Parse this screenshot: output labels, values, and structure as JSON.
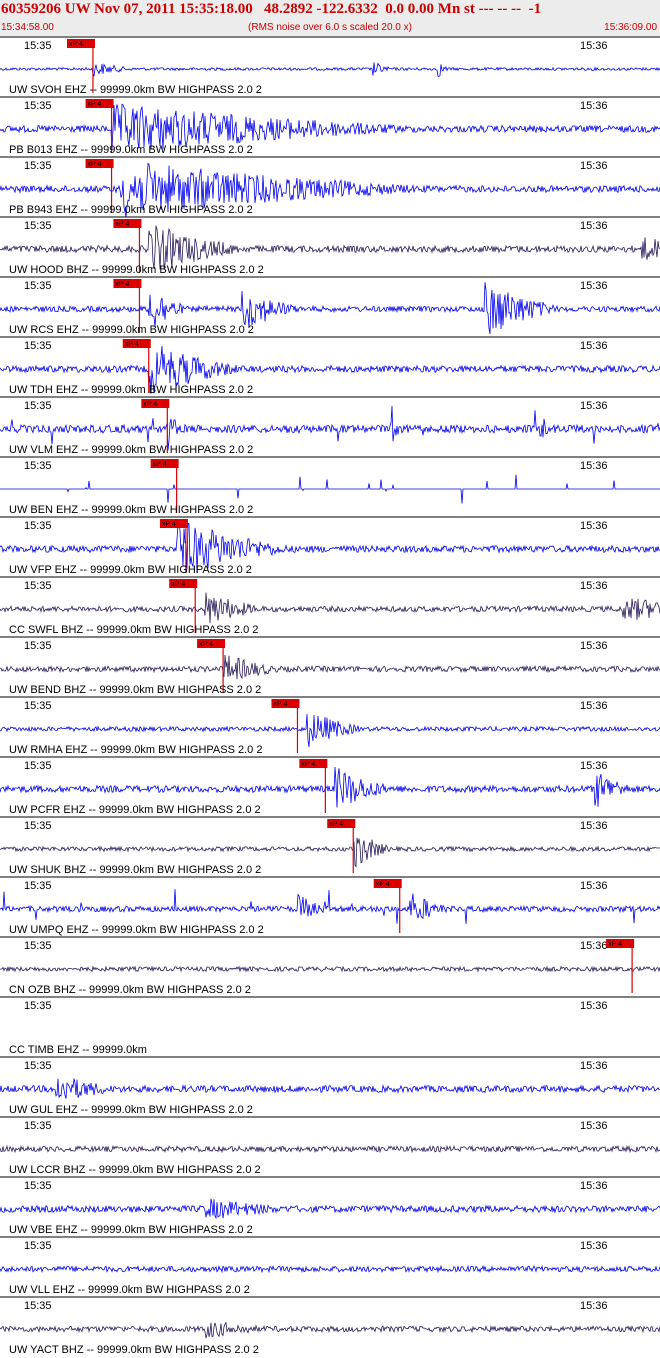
{
  "header": {
    "title": "60359206 UW Nov 07, 2011 15:35:18.00   48.2892 -122.6332  0.0 0.00 Mn st --- -- --  -1",
    "start_time": "15:34:58.00",
    "rms_note": "(RMS noise over 6.0 s scaled 20.0 x)",
    "end_time": "15:36:09.00"
  },
  "colors": {
    "header_text": "#cc0000",
    "header_bg": "#ececec",
    "trace_ehz": "#0000ee",
    "trace_bhz": "#2b1a5c",
    "pick": "#dd0000",
    "separator": "#000000"
  },
  "chart_data": {
    "type": "line",
    "title": "",
    "xlabel": "",
    "ylabel": "",
    "x_ticks": [
      "15:35",
      "15:36"
    ],
    "pick_label": "xP 4",
    "stations": [
      {
        "label": "UW SVOH EHZ -- 99999.0km BW  HIGHPASS  2.0  2",
        "component": "EHZ",
        "pick": "15:35:08",
        "bursts": [
          {
            "t": "15:35:08",
            "amp": 0.22,
            "dur": 2
          },
          {
            "t": "15:35:38",
            "amp": 0.25,
            "dur": 1
          },
          {
            "t": "15:35:45",
            "amp": 0.3,
            "dur": 0.6
          }
        ],
        "noise": 0.05
      },
      {
        "label": "PB B013 EHZ -- 99999.0km BW  HIGHPASS  2.0  2",
        "component": "EHZ",
        "pick": "15:35:10",
        "bursts": [
          {
            "t": "15:35:10",
            "amp": 0.8,
            "dur": 16
          }
        ],
        "noise": 0.12
      },
      {
        "label": "PB B943 EHZ -- 99999.0km BW  HIGHPASS  2.0  2",
        "component": "EHZ",
        "pick": "15:35:10",
        "bursts": [
          {
            "t": "15:35:11",
            "amp": 0.9,
            "dur": 16
          }
        ],
        "noise": 0.12
      },
      {
        "label": "UW HOOD BHZ -- 99999.0km BW  HIGHPASS  2.0  2",
        "component": "BHZ",
        "pick": "15:35:13",
        "bursts": [
          {
            "t": "15:35:14",
            "amp": 0.8,
            "dur": 5
          },
          {
            "t": "15:36:07",
            "amp": 0.35,
            "dur": 3
          }
        ],
        "noise": 0.12
      },
      {
        "label": "UW RCS EHZ -- 99999.0km BW  HIGHPASS  2.0  2",
        "component": "EHZ",
        "pick": "15:35:13",
        "bursts": [
          {
            "t": "15:35:14",
            "amp": 0.8,
            "dur": 2
          },
          {
            "t": "15:35:24",
            "amp": 0.7,
            "dur": 3
          },
          {
            "t": "15:35:50",
            "amp": 0.95,
            "dur": 4
          }
        ],
        "noise": 0.1
      },
      {
        "label": "UW TDH EHZ -- 99999.0km BW  HIGHPASS  2.0  2",
        "component": "EHZ",
        "pick": "15:35:14",
        "bursts": [
          {
            "t": "15:35:14",
            "amp": 0.85,
            "dur": 5
          }
        ],
        "noise": 0.12
      },
      {
        "label": "UW VLM EHZ -- 99999.0km BW  HIGHPASS  2.0  2",
        "component": "EHZ",
        "pick": "15:35:16",
        "bursts": [
          {
            "t": "15:35:16",
            "amp": 0.5,
            "dur": 1
          },
          {
            "t": "15:35:40",
            "amp": 0.5,
            "dur": 0.5
          },
          {
            "t": "15:35:56",
            "amp": 0.4,
            "dur": 0.5
          }
        ],
        "noise": 0.14,
        "spiky": true
      },
      {
        "label": "UW BEN EHZ -- 99999.0km BW  HIGHPASS  2.0  2",
        "component": "EHZ",
        "pick": "15:35:17",
        "bursts": [],
        "noise": 0.0,
        "spiky": true
      },
      {
        "label": "UW VFP EHZ -- 99999.0km BW  HIGHPASS  2.0  2",
        "component": "EHZ",
        "pick": "15:35:18",
        "bursts": [
          {
            "t": "15:35:17",
            "amp": 0.95,
            "dur": 6
          }
        ],
        "noise": 0.12
      },
      {
        "label": "CC SWFL BHZ -- 99999.0km BW  HIGHPASS  2.0  2",
        "component": "BHZ",
        "pick": "15:35:19",
        "bursts": [
          {
            "t": "15:35:20",
            "amp": 0.55,
            "dur": 3
          },
          {
            "t": "15:36:05",
            "amp": 0.35,
            "dur": 5
          }
        ],
        "noise": 0.1
      },
      {
        "label": "UW BEND BHZ -- 99999.0km BW  HIGHPASS  2.0  2",
        "component": "BHZ",
        "pick": "15:35:22",
        "bursts": [
          {
            "t": "15:35:22",
            "amp": 0.45,
            "dur": 3
          }
        ],
        "noise": 0.1
      },
      {
        "label": "UW RMHA EHZ -- 99999.0km BW  HIGHPASS  2.0  2",
        "component": "EHZ",
        "pick": "15:35:30",
        "bursts": [
          {
            "t": "15:35:31",
            "amp": 0.6,
            "dur": 3
          }
        ],
        "noise": 0.08
      },
      {
        "label": "UW PCFR EHZ -- 99999.0km BW  HIGHPASS  2.0  2",
        "component": "EHZ",
        "pick": "15:35:33",
        "bursts": [
          {
            "t": "15:35:34",
            "amp": 0.7,
            "dur": 3
          },
          {
            "t": "15:36:02",
            "amp": 0.6,
            "dur": 2
          }
        ],
        "noise": 0.12
      },
      {
        "label": "UW SHUK BHZ -- 99999.0km BW  HIGHPASS  2.0  2",
        "component": "BHZ",
        "pick": "15:35:36",
        "bursts": [
          {
            "t": "15:35:36",
            "amp": 0.65,
            "dur": 2
          }
        ],
        "noise": 0.08
      },
      {
        "label": "UW UMPQ EHZ -- 99999.0km BW  HIGHPASS  2.0  2",
        "component": "EHZ",
        "pick": "15:35:41",
        "bursts": [
          {
            "t": "15:35:30",
            "amp": 0.45,
            "dur": 1.5
          },
          {
            "t": "15:35:42",
            "amp": 0.55,
            "dur": 2
          }
        ],
        "noise": 0.1,
        "spiky": true
      },
      {
        "label": "CN OZB BHZ -- 99999.0km BW  HIGHPASS  2.0  2",
        "component": "BHZ",
        "pick": "15:36:06",
        "bursts": [],
        "noise": 0.08
      },
      {
        "label": "CC TIMB EHZ -- 99999.0km",
        "component": "EHZ",
        "pick": null,
        "bursts": [],
        "noise": 0.0,
        "blank": true
      },
      {
        "label": "UW GUL EHZ -- 99999.0km BW  HIGHPASS  2.0  2",
        "component": "EHZ",
        "pick": null,
        "bursts": [
          {
            "t": "15:35:04",
            "amp": 0.45,
            "dur": 3
          }
        ],
        "noise": 0.12
      },
      {
        "label": "UW LCCR BHZ -- 99999.0km BW  HIGHPASS  2.0  2",
        "component": "BHZ",
        "pick": null,
        "bursts": [],
        "noise": 0.1
      },
      {
        "label": "UW VBE EHZ -- 99999.0km BW  HIGHPASS  2.0  2",
        "component": "EHZ",
        "pick": null,
        "bursts": [
          {
            "t": "15:35:20",
            "amp": 0.3,
            "dur": 4
          }
        ],
        "noise": 0.12
      },
      {
        "label": "UW VLL EHZ -- 99999.0km BW  HIGHPASS  2.0  2",
        "component": "EHZ",
        "pick": null,
        "bursts": [],
        "noise": 0.1
      },
      {
        "label": "UW YACT BHZ -- 99999.0km BW  HIGHPASS  2.0  2",
        "component": "BHZ",
        "pick": null,
        "bursts": [
          {
            "t": "15:35:20",
            "amp": 0.25,
            "dur": 3
          }
        ],
        "noise": 0.1
      }
    ]
  }
}
